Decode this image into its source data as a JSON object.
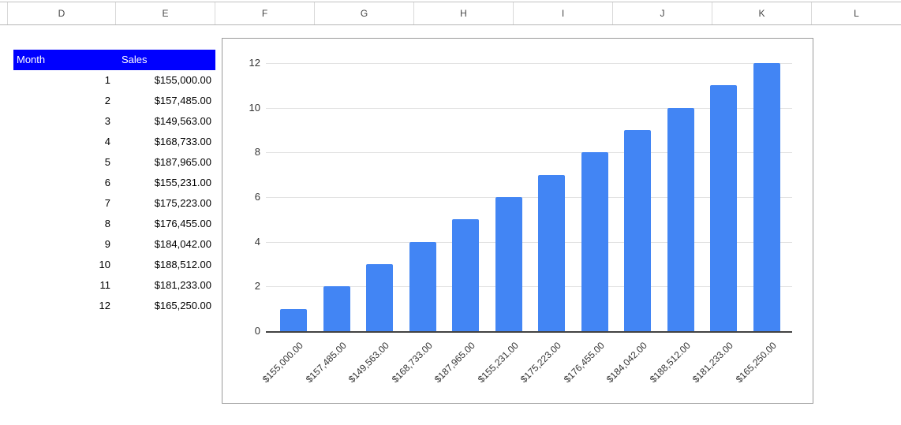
{
  "spreadsheet": {
    "column_headers": [
      "D",
      "E",
      "F",
      "G",
      "H",
      "I",
      "J",
      "K",
      "L"
    ],
    "table": {
      "header": {
        "month_label": "Month",
        "sales_label": "Sales"
      },
      "rows": [
        {
          "month": "1",
          "sales": "$155,000.00"
        },
        {
          "month": "2",
          "sales": "$157,485.00"
        },
        {
          "month": "3",
          "sales": "$149,563.00"
        },
        {
          "month": "4",
          "sales": "$168,733.00"
        },
        {
          "month": "5",
          "sales": "$187,965.00"
        },
        {
          "month": "6",
          "sales": "$155,231.00"
        },
        {
          "month": "7",
          "sales": "$175,223.00"
        },
        {
          "month": "8",
          "sales": "$176,455.00"
        },
        {
          "month": "9",
          "sales": "$184,042.00"
        },
        {
          "month": "10",
          "sales": "$188,512.00"
        },
        {
          "month": "11",
          "sales": "$181,233.00"
        },
        {
          "month": "12",
          "sales": "$165,250.00"
        }
      ],
      "colors": {
        "header_bg": "#0000ff",
        "header_text": "#ffffff"
      }
    }
  },
  "chart_data": {
    "type": "bar",
    "categories": [
      "$155,000.00",
      "$157,485.00",
      "$149,563.00",
      "$168,733.00",
      "$187,965.00",
      "$155,231.00",
      "$175,223.00",
      "$176,455.00",
      "$184,042.00",
      "$188,512.00",
      "$181,233.00",
      "$165,250.00"
    ],
    "values": [
      1,
      2,
      3,
      4,
      5,
      6,
      7,
      8,
      9,
      10,
      11,
      12
    ],
    "title": "",
    "xlabel": "",
    "ylabel": "",
    "ylim": [
      0,
      12
    ],
    "yticks": [
      0,
      2,
      4,
      6,
      8,
      10,
      12
    ],
    "grid": true,
    "legend_position": "none",
    "x_label_rotation": -45,
    "bar_color": "#4285f4"
  }
}
